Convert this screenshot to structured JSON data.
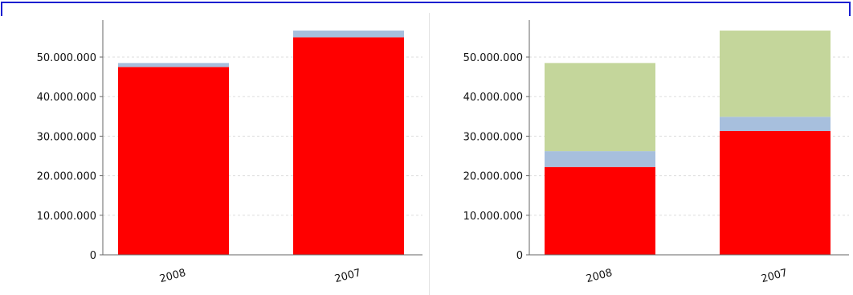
{
  "colors": {
    "frame": "#1a1fd0",
    "red": "#ff0000",
    "blue": "#a7bfdd",
    "green": "#c4d69b",
    "grid": "#dddddd",
    "axis": "#666666"
  },
  "chart_data": [
    {
      "type": "bar",
      "stacked": true,
      "categories": [
        "2008",
        "2007"
      ],
      "series": [
        {
          "color": "#ff0000",
          "values": [
            47500000,
            55000000
          ]
        },
        {
          "color": "#a7bfdd",
          "values": [
            1000000,
            1700000
          ]
        }
      ],
      "yticks": [
        0,
        10000000,
        20000000,
        30000000,
        40000000,
        50000000
      ],
      "ytick_labels": [
        "0",
        "10.000.000",
        "20.000.000",
        "30.000.000",
        "40.000.000",
        "50.000.000"
      ],
      "ylim": [
        0,
        60000000
      ],
      "grid": true,
      "title": "",
      "xlabel": "",
      "ylabel": ""
    },
    {
      "type": "bar",
      "stacked": true,
      "categories": [
        "2008",
        "2007"
      ],
      "series": [
        {
          "color": "#ff0000",
          "values": [
            22200000,
            31300000
          ]
        },
        {
          "color": "#a7bfdd",
          "values": [
            4000000,
            3600000
          ]
        },
        {
          "color": "#c4d69b",
          "values": [
            22300000,
            21800000
          ]
        }
      ],
      "yticks": [
        0,
        10000000,
        20000000,
        30000000,
        40000000,
        50000000
      ],
      "ytick_labels": [
        "0",
        "10.000.000",
        "20.000.000",
        "30.000.000",
        "40.000.000",
        "50.000.000"
      ],
      "ylim": [
        0,
        60000000
      ],
      "grid": true,
      "title": "",
      "xlabel": "",
      "ylabel": ""
    }
  ]
}
